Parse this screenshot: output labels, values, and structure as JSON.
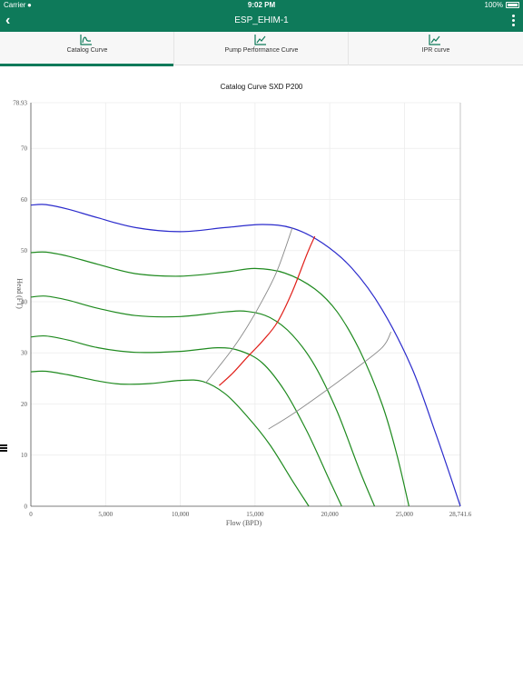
{
  "status_bar": {
    "carrier": "Carrier",
    "time": "9:02 PM",
    "battery": "100%"
  },
  "nav": {
    "title": "ESP_EHIM-1",
    "back_icon": "chevron-left-icon",
    "menu_icon": "more-vertical-icon"
  },
  "tabs": [
    {
      "label": "Catalog Curve",
      "icon": "curve-chart-icon",
      "active": true
    },
    {
      "label": "Pump Performance Curve",
      "icon": "line-chart-icon",
      "active": false
    },
    {
      "label": "IPR curve",
      "icon": "line-chart-icon",
      "active": false
    }
  ],
  "colors": {
    "brand": "#0e7a5a",
    "blue_curve": "#2b2bcc",
    "green_curve": "#1f8a1f",
    "red_curve": "#e0201a",
    "gray_curve": "#8a8a8a"
  },
  "chart_data": {
    "type": "line",
    "title": "Catalog Curve SXD P200",
    "xlabel": "Flow (BPD)",
    "ylabel": "Head (FT)",
    "xlim": [
      0,
      28741.6
    ],
    "ylim": [
      0,
      78.93
    ],
    "x_ticks": [
      "0",
      "5,000",
      "10,000",
      "15,000",
      "20,000",
      "25,000",
      "28,741.6"
    ],
    "y_ticks": [
      "0",
      "10",
      "20",
      "30",
      "40",
      "50",
      "60",
      "70",
      "78.93"
    ],
    "grid": true,
    "series": [
      {
        "color": "#2b2bcc",
        "points": [
          [
            0,
            58.9
          ],
          [
            1000,
            59.0
          ],
          [
            2500,
            58.1
          ],
          [
            4500,
            56.4
          ],
          [
            7000,
            54.5
          ],
          [
            10000,
            53.7
          ],
          [
            13000,
            54.5
          ],
          [
            15500,
            55.1
          ],
          [
            17500,
            54.4
          ],
          [
            19500,
            51.5
          ],
          [
            21500,
            46.5
          ],
          [
            23500,
            38.5
          ],
          [
            25500,
            27.0
          ],
          [
            27000,
            15.0
          ],
          [
            28000,
            6.5
          ],
          [
            28741.6,
            0
          ]
        ]
      },
      {
        "color": "#1f8a1f",
        "points": [
          [
            0,
            49.6
          ],
          [
            1000,
            49.7
          ],
          [
            2500,
            48.9
          ],
          [
            4500,
            47.3
          ],
          [
            7000,
            45.5
          ],
          [
            10000,
            45.0
          ],
          [
            13000,
            45.8
          ],
          [
            15000,
            46.5
          ],
          [
            17000,
            45.6
          ],
          [
            19000,
            42.5
          ],
          [
            20500,
            38.0
          ],
          [
            22000,
            30.5
          ],
          [
            23500,
            20.0
          ],
          [
            24500,
            10.0
          ],
          [
            25300,
            0
          ]
        ]
      },
      {
        "color": "#1f8a1f",
        "points": [
          [
            0,
            40.9
          ],
          [
            1000,
            41.1
          ],
          [
            2500,
            40.3
          ],
          [
            4500,
            38.7
          ],
          [
            7000,
            37.3
          ],
          [
            10000,
            37.1
          ],
          [
            13000,
            38.0
          ],
          [
            14500,
            38.1
          ],
          [
            16000,
            36.9
          ],
          [
            17500,
            33.5
          ],
          [
            19000,
            27.5
          ],
          [
            20500,
            18.5
          ],
          [
            22000,
            7.0
          ],
          [
            23000,
            0
          ]
        ]
      },
      {
        "color": "#1f8a1f",
        "points": [
          [
            0,
            33.1
          ],
          [
            1000,
            33.3
          ],
          [
            2500,
            32.5
          ],
          [
            4500,
            31.0
          ],
          [
            7000,
            30.1
          ],
          [
            10000,
            30.3
          ],
          [
            12500,
            31.0
          ],
          [
            14000,
            30.4
          ],
          [
            15500,
            28.0
          ],
          [
            17000,
            22.5
          ],
          [
            18500,
            14.5
          ],
          [
            20000,
            5.0
          ],
          [
            20800,
            0
          ]
        ]
      },
      {
        "color": "#1f8a1f",
        "points": [
          [
            0,
            26.3
          ],
          [
            1000,
            26.4
          ],
          [
            2500,
            25.7
          ],
          [
            4500,
            24.5
          ],
          [
            6000,
            23.9
          ],
          [
            8000,
            24.0
          ],
          [
            10000,
            24.6
          ],
          [
            11500,
            24.4
          ],
          [
            13000,
            22.0
          ],
          [
            14500,
            17.5
          ],
          [
            16000,
            12.0
          ],
          [
            17500,
            5.0
          ],
          [
            18600,
            0
          ]
        ]
      },
      {
        "color": "#e0201a",
        "points": [
          [
            12600,
            23.6
          ],
          [
            13500,
            26.0
          ],
          [
            14500,
            29.2
          ],
          [
            15500,
            32.3
          ],
          [
            16500,
            36.0
          ],
          [
            17500,
            42.0
          ],
          [
            18500,
            49.5
          ],
          [
            19000,
            52.8
          ]
        ]
      },
      {
        "color": "#8a8a8a",
        "points": [
          [
            11700,
            24.1
          ],
          [
            12500,
            27.0
          ],
          [
            13500,
            30.8
          ],
          [
            14500,
            35.2
          ],
          [
            15500,
            40.3
          ],
          [
            16500,
            46.2
          ],
          [
            17500,
            54.5
          ]
        ]
      },
      {
        "color": "#8a8a8a",
        "points": [
          [
            15900,
            15.1
          ],
          [
            17500,
            18.0
          ],
          [
            19500,
            22.1
          ],
          [
            21500,
            26.4
          ],
          [
            23500,
            31.0
          ],
          [
            24100,
            34.1
          ]
        ]
      }
    ]
  }
}
